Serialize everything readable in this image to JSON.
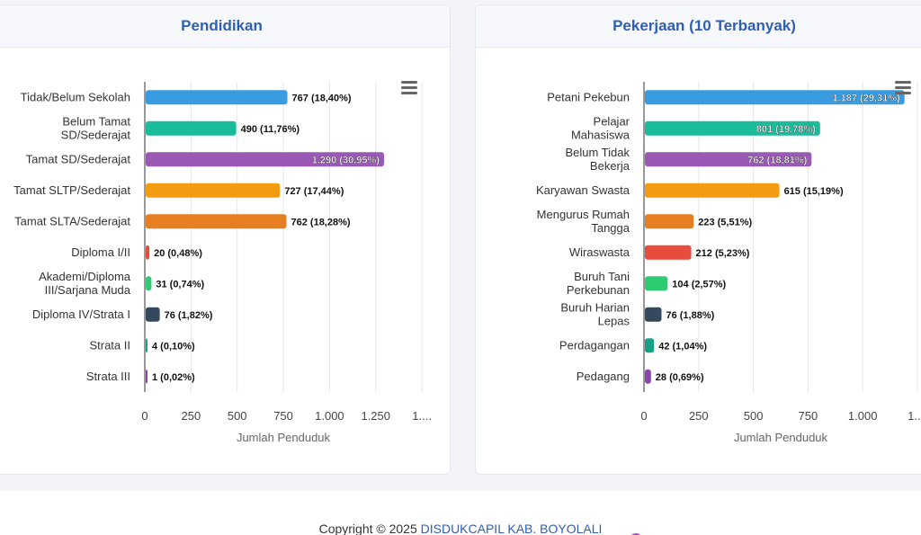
{
  "left_card": {
    "title": "Pendidikan",
    "menu_icon": "hamburger-menu-icon"
  },
  "right_card": {
    "title": "Pekerjaan (10 Terbanyak)",
    "menu_icon": "hamburger-menu-icon"
  },
  "footer": {
    "copyright": "Copyright © 2025",
    "link_text": "DISDUKCAPIL KAB. BOYOLALI"
  },
  "chart_data": [
    {
      "type": "bar",
      "orientation": "horizontal",
      "title": "Pendidikan",
      "xlabel": "Jumlah Penduduk",
      "xlim": [
        0,
        1500
      ],
      "x_ticks": [
        "0",
        "250",
        "500",
        "750",
        "1.000",
        "1.250",
        "1...."
      ],
      "grid": true,
      "categories": [
        "Tidak/Belum Sekolah",
        "Belum Tamat SD/Sederajat",
        "Tamat SD/Sederajat",
        "Tamat SLTP/Sederajat",
        "Tamat SLTA/Sederajat",
        "Diploma I/II",
        "Akademi/Diploma III/Sarjana Muda",
        "Diploma IV/Strata I",
        "Strata II",
        "Strata III"
      ],
      "values": [
        767,
        490,
        1290,
        727,
        762,
        20,
        31,
        76,
        4,
        1
      ],
      "data_labels": [
        "767 (18,40%)",
        "490 (11,76%)",
        "1.290 (30,95%)",
        "727 (17,44%)",
        "762 (18,28%)",
        "20 (0,48%)",
        "31 (0,74%)",
        "76 (1,82%)",
        "4 (0,10%)",
        "1 (0,02%)"
      ],
      "colors": [
        "#3a9ce0",
        "#1abc9c",
        "#9b59b6",
        "#f39c12",
        "#e67e22",
        "#e74c3c",
        "#2ecc71",
        "#34495e",
        "#16a085",
        "#8e44ad"
      ]
    },
    {
      "type": "bar",
      "orientation": "horizontal",
      "title": "Pekerjaan (10 Terbanyak)",
      "xlabel": "Jumlah Penduduk",
      "xlim": [
        0,
        1250
      ],
      "x_ticks": [
        "0",
        "250",
        "500",
        "750",
        "1.000",
        "1...."
      ],
      "grid": true,
      "categories": [
        "Petani Pekebun",
        "Pelajar Mahasiswa",
        "Belum Tidak Bekerja",
        "Karyawan Swasta",
        "Mengurus Rumah Tangga",
        "Wiraswasta",
        "Buruh Tani Perkebunan",
        "Buruh Harian Lepas",
        "Perdagangan",
        "Pedagang"
      ],
      "values": [
        1187,
        801,
        762,
        615,
        223,
        212,
        104,
        76,
        42,
        28
      ],
      "data_labels": [
        "1.187 (29,31%)",
        "801 (19,78%)",
        "762 (18,81%)",
        "615 (15,19%)",
        "223 (5,51%)",
        "212 (5,23%)",
        "104 (2,57%)",
        "76 (1,88%)",
        "42 (1,04%)",
        "28 (0,69%)"
      ],
      "colors": [
        "#3a9ce0",
        "#1abc9c",
        "#9b59b6",
        "#f39c12",
        "#e67e22",
        "#e74c3c",
        "#2ecc71",
        "#34495e",
        "#16a085",
        "#8e44ad"
      ]
    }
  ]
}
